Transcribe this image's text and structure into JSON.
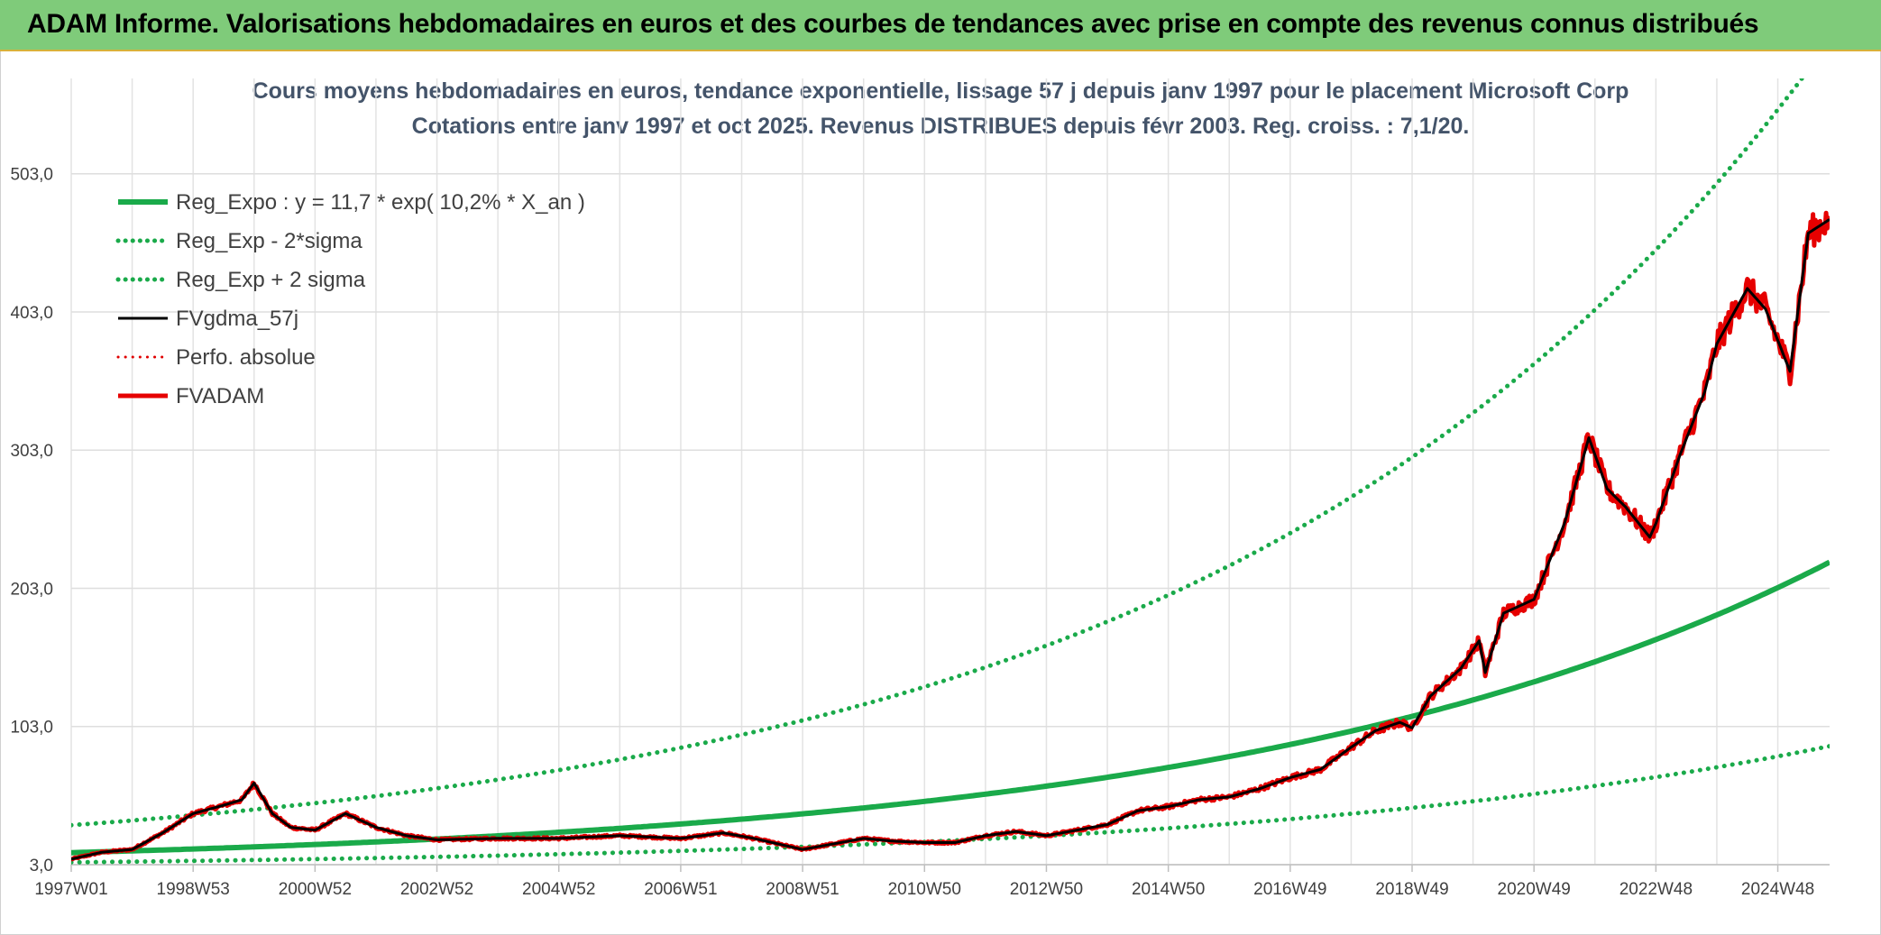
{
  "banner": {
    "title": "ADAM Informe. Valorisations hebdomadaires en euros et des courbes de tendances avec prise en compte des revenus connus distribués"
  },
  "chart_data": {
    "type": "line",
    "title": "Cours moyens hebdomadaires en euros, tendance exponentielle, lissage 57 j depuis janv 1997 pour le placement Microsoft Corp",
    "subtitle": "Cotations entre janv 1997 et oct 2025. Revenus DISTRIBUES depuis févr 2003. Reg. croiss. : 7,1/20.",
    "xlabel": "",
    "ylabel": "",
    "ylim": [
      3,
      572
    ],
    "xlim": [
      1997.0,
      2025.85
    ],
    "grid": true,
    "legend_position": "top-left",
    "y_ticks": [
      "3,0",
      "103,0",
      "203,0",
      "303,0",
      "403,0",
      "503,0"
    ],
    "y_tick_values": [
      3,
      103,
      203,
      303,
      403,
      503
    ],
    "x_ticks": [
      "1997W01",
      "1998W53",
      "2000W52",
      "2002W52",
      "2004W52",
      "2006W51",
      "2008W51",
      "2010W50",
      "2012W50",
      "2014W50",
      "2016W49",
      "2018W49",
      "2020W49",
      "2022W48",
      "2024W48"
    ],
    "x_tick_values": [
      1997.0,
      1999.0,
      2001.0,
      2003.0,
      2005.0,
      2007.0,
      2009.0,
      2011.0,
      2013.0,
      2015.0,
      2017.0,
      2019.0,
      2021.0,
      2023.0,
      2025.0
    ],
    "regression": {
      "a": 11.7,
      "b": 0.102,
      "lower_factor": 0.4,
      "upper_factor": 2.7
    },
    "series": [
      {
        "name": "Reg_Expo : y = 11,7 * exp( 10,2% *  X_an )",
        "color": "#1aaa4a",
        "style": "solid",
        "width": 6
      },
      {
        "name": "Reg_Exp - 2*sigma",
        "color": "#1aaa4a",
        "style": "dotted",
        "width": 5
      },
      {
        "name": "Reg_Exp + 2 sigma",
        "color": "#1aaa4a",
        "style": "dotted",
        "width": 5
      },
      {
        "name": "FVgdma_57j",
        "color": "#000000",
        "style": "solid",
        "width": 3
      },
      {
        "name": "Perfo. absolue",
        "color": "#e00000",
        "style": "dotted",
        "width": 3
      },
      {
        "name": "FVADAM",
        "color": "#e60000",
        "style": "solid",
        "width": 5
      }
    ],
    "price_points": [
      [
        1997.0,
        7
      ],
      [
        1997.5,
        12
      ],
      [
        1998.0,
        14
      ],
      [
        1998.5,
        26
      ],
      [
        1999.0,
        40
      ],
      [
        1999.5,
        46
      ],
      [
        1999.8,
        50
      ],
      [
        2000.0,
        62
      ],
      [
        2000.3,
        40
      ],
      [
        2000.6,
        30
      ],
      [
        2001.0,
        28
      ],
      [
        2001.5,
        40
      ],
      [
        2002.0,
        30
      ],
      [
        2002.5,
        24
      ],
      [
        2003.0,
        21
      ],
      [
        2004.0,
        22
      ],
      [
        2005.0,
        22
      ],
      [
        2006.0,
        24
      ],
      [
        2007.0,
        22
      ],
      [
        2007.7,
        26
      ],
      [
        2008.2,
        22
      ],
      [
        2009.0,
        14
      ],
      [
        2009.5,
        18
      ],
      [
        2010.0,
        22
      ],
      [
        2010.5,
        20
      ],
      [
        2011.0,
        19
      ],
      [
        2011.5,
        19
      ],
      [
        2012.0,
        24
      ],
      [
        2012.5,
        27
      ],
      [
        2013.0,
        24
      ],
      [
        2013.5,
        28
      ],
      [
        2014.0,
        32
      ],
      [
        2014.5,
        42
      ],
      [
        2015.0,
        45
      ],
      [
        2015.5,
        50
      ],
      [
        2016.0,
        52
      ],
      [
        2016.5,
        58
      ],
      [
        2017.0,
        66
      ],
      [
        2017.5,
        72
      ],
      [
        2018.0,
        88
      ],
      [
        2018.4,
        100
      ],
      [
        2018.8,
        106
      ],
      [
        2019.0,
        102
      ],
      [
        2019.3,
        125
      ],
      [
        2019.8,
        145
      ],
      [
        2020.1,
        165
      ],
      [
        2020.2,
        142
      ],
      [
        2020.5,
        185
      ],
      [
        2021.0,
        195
      ],
      [
        2021.5,
        250
      ],
      [
        2021.9,
        312
      ],
      [
        2022.2,
        275
      ],
      [
        2022.5,
        262
      ],
      [
        2022.9,
        240
      ],
      [
        2023.0,
        250
      ],
      [
        2023.4,
        300
      ],
      [
        2023.8,
        345
      ],
      [
        2024.0,
        380
      ],
      [
        2024.5,
        420
      ],
      [
        2024.8,
        405
      ],
      [
        2025.2,
        360
      ],
      [
        2025.5,
        460
      ],
      [
        2025.85,
        470
      ]
    ]
  }
}
